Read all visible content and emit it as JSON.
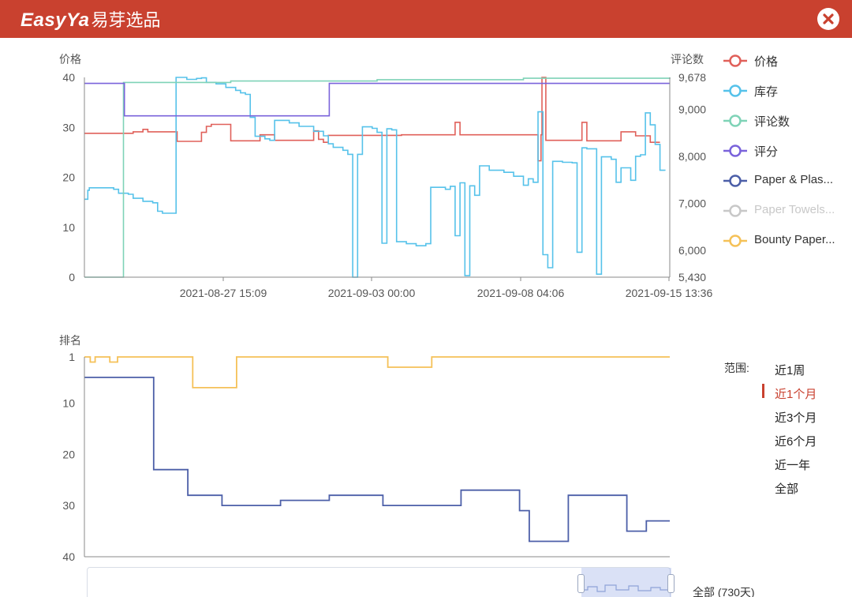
{
  "header": {
    "logo_en": "EasyYa",
    "logo_zh": "易芽选品",
    "bg_color": "#c9412f"
  },
  "close_icon": "close-circle-icon",
  "chart_data": [
    {
      "type": "line",
      "y_left": {
        "label": "价格",
        "ticks": [
          "0",
          "10",
          "20",
          "30",
          "40"
        ],
        "range": [
          0,
          40
        ]
      },
      "y_right": {
        "label": "评论数",
        "ticks": [
          "5,430",
          "6,000",
          "7,000",
          "8,000",
          "9,000",
          "9,678"
        ],
        "range": [
          5430,
          9678
        ]
      },
      "x_ticks": [
        "2021-08-27 15:09",
        "2021-09-03 00:00",
        "2021-09-08 04:06",
        "2021-09-15 13:36"
      ],
      "grid": false,
      "series": [
        {
          "name": "价格",
          "color": "#e0605a",
          "axis": "left",
          "step": true,
          "points": [
            [
              0,
              28.8
            ],
            [
              9,
              28.8
            ],
            [
              10,
              29.1
            ],
            [
              12,
              29.6
            ],
            [
              13,
              29.1
            ],
            [
              18,
              29.1
            ],
            [
              19,
              27.2
            ],
            [
              23,
              27.2
            ],
            [
              24,
              29.0
            ],
            [
              25,
              30.2
            ],
            [
              26,
              30.6
            ],
            [
              29,
              30.6
            ],
            [
              30,
              27.3
            ],
            [
              35,
              27.3
            ],
            [
              36,
              28.5
            ],
            [
              38,
              28.5
            ],
            [
              39,
              27.4
            ],
            [
              46,
              27.4
            ],
            [
              47,
              29.3
            ],
            [
              48,
              27.6
            ],
            [
              49,
              27.0
            ],
            [
              50,
              28.4
            ],
            [
              64,
              28.4
            ],
            [
              65,
              28.5
            ],
            [
              75,
              28.5
            ],
            [
              76,
              31.0
            ],
            [
              77,
              28.5
            ],
            [
              92,
              28.5
            ],
            [
              93,
              23.3
            ],
            [
              93.6,
              28.5
            ],
            [
              93.8,
              40.0
            ],
            [
              94.6,
              27.4
            ],
            [
              101,
              27.4
            ],
            [
              102,
              31.0
            ],
            [
              103,
              27.3
            ],
            [
              109,
              27.3
            ],
            [
              110,
              29.1
            ],
            [
              113,
              28.3
            ],
            [
              115,
              28.3
            ],
            [
              116,
              27.0
            ],
            [
              118,
              27.0
            ]
          ]
        },
        {
          "name": "库存",
          "color": "#56c2ea",
          "axis": "left",
          "step": true,
          "points": [
            [
              0,
              15.6
            ],
            [
              0.7,
              17.4
            ],
            [
              1,
              17.9
            ],
            [
              6,
              17.6
            ],
            [
              7,
              16.8
            ],
            [
              9,
              16.6
            ],
            [
              10,
              15.8
            ],
            [
              12,
              15.2
            ],
            [
              14,
              14.9
            ],
            [
              15,
              13.2
            ],
            [
              16,
              12.8
            ],
            [
              18,
              12.8
            ],
            [
              18.8,
              40.0
            ],
            [
              21,
              39.6
            ],
            [
              23,
              39.8
            ],
            [
              24,
              39.9
            ],
            [
              25,
              39.0
            ],
            [
              27,
              38.7
            ],
            [
              29,
              38.0
            ],
            [
              31,
              37.4
            ],
            [
              32,
              36.9
            ],
            [
              33,
              36.6
            ],
            [
              34,
              32.0
            ],
            [
              35,
              28.2
            ],
            [
              37,
              27.7
            ],
            [
              38,
              27.4
            ],
            [
              39,
              31.4
            ],
            [
              42,
              30.9
            ],
            [
              44,
              30.2
            ],
            [
              47,
              29.2
            ],
            [
              49,
              28.3
            ],
            [
              50,
              26.7
            ],
            [
              51,
              26.0
            ],
            [
              53,
              25.4
            ],
            [
              54,
              24.6
            ],
            [
              55,
              0.0
            ],
            [
              56,
              24.6
            ],
            [
              57,
              30.1
            ],
            [
              59,
              29.8
            ],
            [
              60,
              29.0
            ],
            [
              61,
              6.8
            ],
            [
              62,
              29.7
            ],
            [
              63,
              29.5
            ],
            [
              64,
              7.1
            ],
            [
              66,
              6.7
            ],
            [
              68,
              6.3
            ],
            [
              70,
              6.7
            ],
            [
              71,
              18.0
            ],
            [
              74,
              17.6
            ],
            [
              75,
              18.2
            ],
            [
              76,
              8.3
            ],
            [
              77,
              18.9
            ],
            [
              78,
              0.3
            ],
            [
              79,
              18.3
            ],
            [
              80,
              16.4
            ],
            [
              81,
              22.3
            ],
            [
              83,
              21.4
            ],
            [
              86,
              21.0
            ],
            [
              88,
              20.2
            ],
            [
              90,
              18.4
            ],
            [
              91,
              19.7
            ],
            [
              92,
              19.0
            ],
            [
              93,
              33.1
            ],
            [
              94,
              4.5
            ],
            [
              95,
              1.9
            ],
            [
              96,
              23.2
            ],
            [
              98,
              23.0
            ],
            [
              100,
              22.9
            ],
            [
              101,
              5.0
            ],
            [
              102,
              25.9
            ],
            [
              103,
              25.7
            ],
            [
              105,
              0.6
            ],
            [
              106,
              24.1
            ],
            [
              108,
              23.6
            ],
            [
              109,
              19.0
            ],
            [
              110,
              21.9
            ],
            [
              112,
              19.4
            ],
            [
              113,
              24.2
            ],
            [
              114,
              24.5
            ],
            [
              115,
              32.9
            ],
            [
              116,
              30.5
            ],
            [
              117,
              26.6
            ],
            [
              118,
              21.4
            ],
            [
              119,
              21.3
            ]
          ]
        },
        {
          "name": "评论数",
          "color": "#7fd3b7",
          "axis": "right",
          "step": true,
          "points": [
            [
              0,
              5430
            ],
            [
              7.9,
              5430
            ],
            [
              8,
              9570
            ],
            [
              30,
              9600
            ],
            [
              60,
              9630
            ],
            [
              90,
              9660
            ],
            [
              120,
              9678
            ]
          ]
        },
        {
          "name": "评分",
          "color": "#7a63db",
          "axis": "left",
          "step": true,
          "points": [
            [
              0,
              38.8
            ],
            [
              8,
              38.8
            ],
            [
              8.2,
              32.3
            ],
            [
              50,
              32.3
            ],
            [
              50.2,
              38.8
            ],
            [
              120,
              38.8
            ]
          ]
        },
        {
          "name": "Paper & Plas...",
          "color": "#4c5fa8",
          "axis": "left",
          "step": true,
          "points": []
        },
        {
          "name": "Paper Towels...",
          "color": "#c8c8c8",
          "axis": "left",
          "step": true,
          "hidden": true,
          "points": []
        },
        {
          "name": "Bounty Paper...",
          "color": "#f5c158",
          "axis": "left",
          "step": true,
          "points": []
        }
      ]
    },
    {
      "type": "line",
      "y_left": {
        "label": "排名",
        "ticks": [
          "1",
          "10",
          "20",
          "30",
          "40"
        ],
        "range": [
          1,
          40
        ],
        "inverse": true
      },
      "grid": false,
      "series": [
        {
          "name": "Bounty Paper...",
          "color": "#f5c158",
          "step": true,
          "points": [
            [
              0,
              1.0
            ],
            [
              1.2,
              2.0
            ],
            [
              2.2,
              1.0
            ],
            [
              5,
              1.0
            ],
            [
              5.2,
              2.0
            ],
            [
              6.8,
              1.0
            ],
            [
              22,
              1.0
            ],
            [
              22.2,
              7.0
            ],
            [
              31,
              7.0
            ],
            [
              31.2,
              1.0
            ],
            [
              62,
              1.0
            ],
            [
              62.2,
              3.0
            ],
            [
              71,
              3.0
            ],
            [
              71.2,
              1.0
            ],
            [
              120,
              1.0
            ]
          ]
        },
        {
          "name": "Paper & Plas...",
          "color": "#4c5fa8",
          "step": true,
          "points": [
            [
              0,
              5.0
            ],
            [
              14,
              5.0
            ],
            [
              14.2,
              23.0
            ],
            [
              21,
              23.0
            ],
            [
              21.2,
              28.0
            ],
            [
              28,
              28.0
            ],
            [
              28.2,
              30.0
            ],
            [
              40,
              30.0
            ],
            [
              40.2,
              29.0
            ],
            [
              50,
              29.0
            ],
            [
              50.2,
              28.0
            ],
            [
              61,
              28.0
            ],
            [
              61.2,
              30.0
            ],
            [
              77,
              30.0
            ],
            [
              77.2,
              27.0
            ],
            [
              89,
              27.0
            ],
            [
              89.2,
              31.0
            ],
            [
              91,
              31.0
            ],
            [
              91.2,
              37.0
            ],
            [
              99,
              37.0
            ],
            [
              99.2,
              28.0
            ],
            [
              111,
              28.0
            ],
            [
              111.2,
              35.0
            ],
            [
              115,
              35.0
            ],
            [
              115.2,
              33.0
            ],
            [
              120,
              33.0
            ]
          ]
        }
      ]
    }
  ],
  "range": {
    "title": "范围:",
    "options": [
      "近1周",
      "近1个月",
      "近3个月",
      "近6个月",
      "近一年",
      "全部"
    ],
    "active": 1,
    "active_color": "#c9412f"
  },
  "slider": {
    "label": "全部 (730天)",
    "selected_fraction": [
      0.846,
      1.0
    ]
  }
}
